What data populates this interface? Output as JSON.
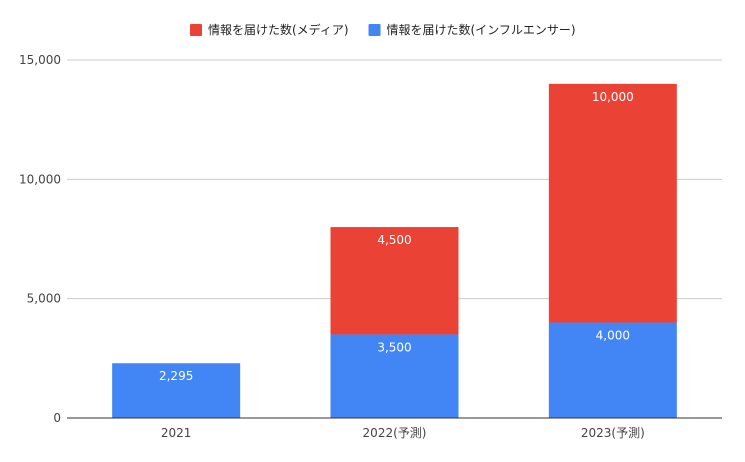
{
  "chart_data": {
    "type": "bar",
    "stacked": true,
    "categories": [
      "2021",
      "2022(予測)",
      "2023(予測)"
    ],
    "series": [
      {
        "name": "情報を届けた数(インフルエンサー)",
        "color": "#4285f4",
        "values": [
          2295,
          3500,
          4000
        ]
      },
      {
        "name": "情報を届けた数(メディア)",
        "color": "#ea4335",
        "values": [
          null,
          4500,
          10000
        ]
      }
    ],
    "value_labels": [
      [
        "2,295",
        "3,500",
        "4,000"
      ],
      [
        null,
        "4,500",
        "10,000"
      ]
    ],
    "legend_order": [
      1,
      0
    ],
    "legend_position": "top",
    "yticks": [
      0,
      5000,
      10000,
      15000
    ],
    "ytick_labels": [
      "0",
      "5,000",
      "10,000",
      "15,000"
    ],
    "ylim": [
      0,
      15000
    ],
    "grid": true,
    "title": "",
    "xlabel": "",
    "ylabel": ""
  }
}
